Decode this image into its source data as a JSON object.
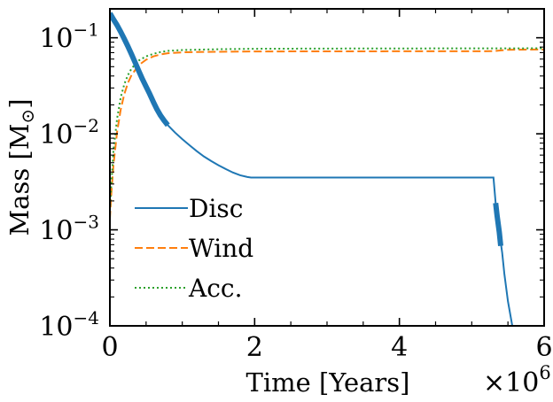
{
  "chart_data": {
    "type": "line",
    "title": "",
    "xlabel": "Time [Years]",
    "ylabel": "Mass [M",
    "ylabel_symbol": "⊙",
    "ylabel_suffix": "]",
    "x_multiplier_base": "×10",
    "x_multiplier_exp": "6",
    "xlim": [
      0,
      6000000
    ],
    "ylim": [
      0.0001,
      0.2
    ],
    "yscale": "log",
    "grid": false,
    "legend_position": "lower-left",
    "x_ticks": [
      {
        "value": 0,
        "label": "0"
      },
      {
        "value": 2000000,
        "label": "2"
      },
      {
        "value": 4000000,
        "label": "4"
      },
      {
        "value": 6000000,
        "label": "6"
      }
    ],
    "y_ticks": [
      {
        "value": 0.1,
        "base": "10",
        "exp": "−1"
      },
      {
        "value": 0.01,
        "base": "10",
        "exp": "−2"
      },
      {
        "value": 0.001,
        "base": "10",
        "exp": "−3"
      },
      {
        "value": 0.0001,
        "base": "10",
        "exp": "−4"
      }
    ],
    "series": [
      {
        "name": "Disc",
        "color": "#1f77b4",
        "style": "solid",
        "x": [
          0,
          50000,
          100000,
          150000,
          200000,
          250000,
          300000,
          350000,
          400000,
          450000,
          500000,
          550000,
          600000,
          650000,
          700000,
          750000,
          800000,
          900000,
          1000000,
          1100000,
          1200000,
          1300000,
          1400000,
          1500000,
          1600000,
          1700000,
          1800000,
          1900000,
          1950000,
          2500000,
          3000000,
          4000000,
          5000000,
          5300000,
          5330000,
          5350000,
          5380000,
          5420000,
          5450000,
          5500000,
          5560000
        ],
        "y": [
          0.18,
          0.155,
          0.135,
          0.115,
          0.097,
          0.081,
          0.067,
          0.055,
          0.045,
          0.037,
          0.031,
          0.026,
          0.0215,
          0.018,
          0.0155,
          0.0137,
          0.0123,
          0.0103,
          0.0088,
          0.0076,
          0.0066,
          0.0058,
          0.0052,
          0.0047,
          0.0043,
          0.00395,
          0.0037,
          0.00355,
          0.0035,
          0.0035,
          0.0035,
          0.0035,
          0.0035,
          0.0035,
          0.0019,
          0.0014,
          0.00095,
          0.00058,
          0.00035,
          0.00018,
          0.0001
        ]
      },
      {
        "name": "Wind",
        "color": "#ff7f0e",
        "style": "dashed",
        "x": [
          0,
          20000,
          50000,
          100000,
          150000,
          200000,
          250000,
          300000,
          400000,
          500000,
          600000,
          700000,
          800000,
          1000000,
          1200000,
          1500000,
          2000000,
          3000000,
          4000000,
          5000000,
          5300000,
          5500000,
          6000000
        ],
        "y": [
          0.0013,
          0.0024,
          0.0048,
          0.0105,
          0.018,
          0.026,
          0.034,
          0.041,
          0.052,
          0.059,
          0.064,
          0.067,
          0.069,
          0.0705,
          0.071,
          0.0715,
          0.072,
          0.0722,
          0.0723,
          0.0724,
          0.0725,
          0.075,
          0.0755
        ]
      },
      {
        "name": "Acc.",
        "color": "#2ca02c",
        "style": "dotted",
        "x": [
          0,
          20000,
          50000,
          100000,
          150000,
          200000,
          250000,
          300000,
          400000,
          500000,
          600000,
          700000,
          800000,
          1000000,
          1500000,
          2000000,
          3000000,
          4000000,
          5000000,
          5500000,
          6000000
        ],
        "y": [
          0.0016,
          0.003,
          0.0068,
          0.0145,
          0.024,
          0.033,
          0.041,
          0.048,
          0.058,
          0.064,
          0.068,
          0.071,
          0.073,
          0.0745,
          0.076,
          0.0768,
          0.0772,
          0.0774,
          0.0775,
          0.0776,
          0.0777
        ]
      }
    ],
    "highlights": [
      {
        "series": "Disc",
        "x": [
          0,
          50000,
          100000,
          150000,
          200000,
          250000,
          300000,
          350000,
          400000,
          450000,
          500000,
          550000,
          600000,
          650000,
          700000,
          750000,
          800000
        ],
        "y": [
          0.18,
          0.155,
          0.135,
          0.115,
          0.097,
          0.081,
          0.067,
          0.055,
          0.045,
          0.037,
          0.031,
          0.026,
          0.0215,
          0.018,
          0.0155,
          0.0137,
          0.0123
        ]
      },
      {
        "series": "Disc",
        "x": [
          5330000,
          5350000,
          5380000,
          5400000
        ],
        "y": [
          0.0019,
          0.0014,
          0.00095,
          0.00068
        ]
      }
    ]
  }
}
